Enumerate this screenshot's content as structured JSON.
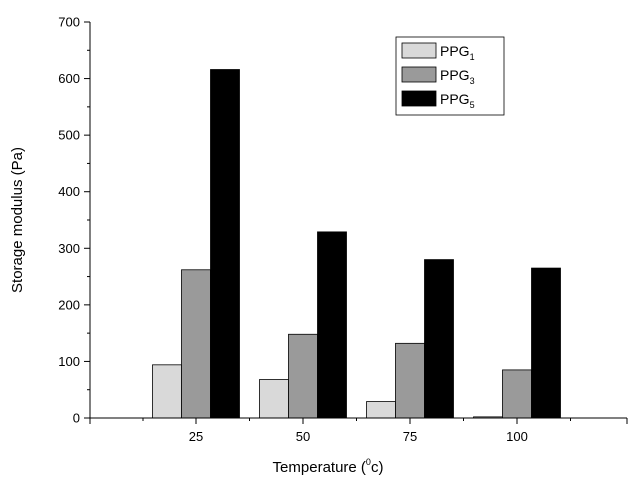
{
  "chart_data": {
    "type": "bar",
    "title": "",
    "xlabel": "Temperature (",
    "xlabel_sup": "0",
    "xlabel_tail": "c)",
    "ylabel": "Storage modulus (Pa)",
    "categories": [
      "25",
      "50",
      "75",
      "100"
    ],
    "ylim": [
      0,
      700
    ],
    "yticks": [
      "0",
      "100",
      "200",
      "300",
      "400",
      "500",
      "600",
      "700"
    ],
    "series": [
      {
        "name": "PPG",
        "subscript": "1",
        "color": "#d9d9d9",
        "values": [
          94,
          68,
          29,
          2
        ]
      },
      {
        "name": "PPG",
        "subscript": "3",
        "color": "#9a9a9a",
        "values": [
          262,
          148,
          132,
          85
        ]
      },
      {
        "name": "PPG",
        "subscript": "5",
        "color": "#000000",
        "values": [
          616,
          329,
          280,
          265
        ]
      }
    ],
    "legend_position": "top-right",
    "grid": false
  }
}
